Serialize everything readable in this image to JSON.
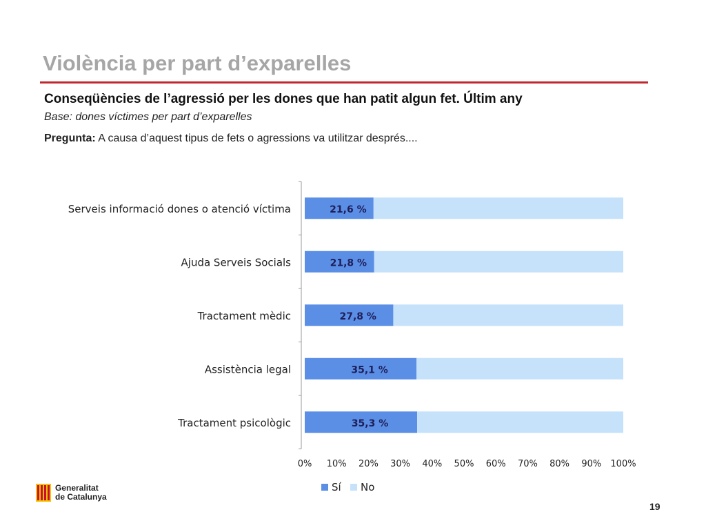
{
  "slide": {
    "title": "Violència per part d’exparelles",
    "subtitle": "Conseqüències de l’agressió per les dones que han  patit algun fet. Últim any",
    "base": "Base: dones víctimes per part d’exparelles",
    "question_label": "Pregunta:",
    "question_text": " A causa d’aquest tipus de fets o agressions va utilitzar després....",
    "page_number": "19"
  },
  "logo": {
    "line1": "Generalitat",
    "line2": "de Catalunya",
    "icon": "senyera-icon"
  },
  "colors": {
    "accent_rule": "#c0282d",
    "si": "#5b8fe6",
    "no": "#c6e2fb",
    "title_gray": "#a6a6a6"
  },
  "chart_data": {
    "type": "bar",
    "orientation": "horizontal",
    "stacked": true,
    "categories": [
      "Serveis informació dones o atenció víctima",
      "Ajuda Serveis Socials",
      "Tractament mèdic",
      "Assistència legal",
      "Tractament psicològic"
    ],
    "series": [
      {
        "name": "Sí",
        "values": [
          21.6,
          21.8,
          27.8,
          35.1,
          35.3
        ],
        "color": "#5b8fe6"
      },
      {
        "name": "No",
        "values": [
          78.4,
          78.2,
          72.2,
          64.9,
          64.7
        ],
        "color": "#c6e2fb"
      }
    ],
    "data_labels": [
      "21,6 %",
      "21,8 %",
      "27,8 %",
      "35,1 %",
      "35,3 %"
    ],
    "xlim": [
      0,
      100
    ],
    "xticks": [
      "0%",
      "10%",
      "20%",
      "30%",
      "40%",
      "50%",
      "60%",
      "70%",
      "80%",
      "90%",
      "100%"
    ],
    "grid": false,
    "legend_position": "bottom"
  }
}
